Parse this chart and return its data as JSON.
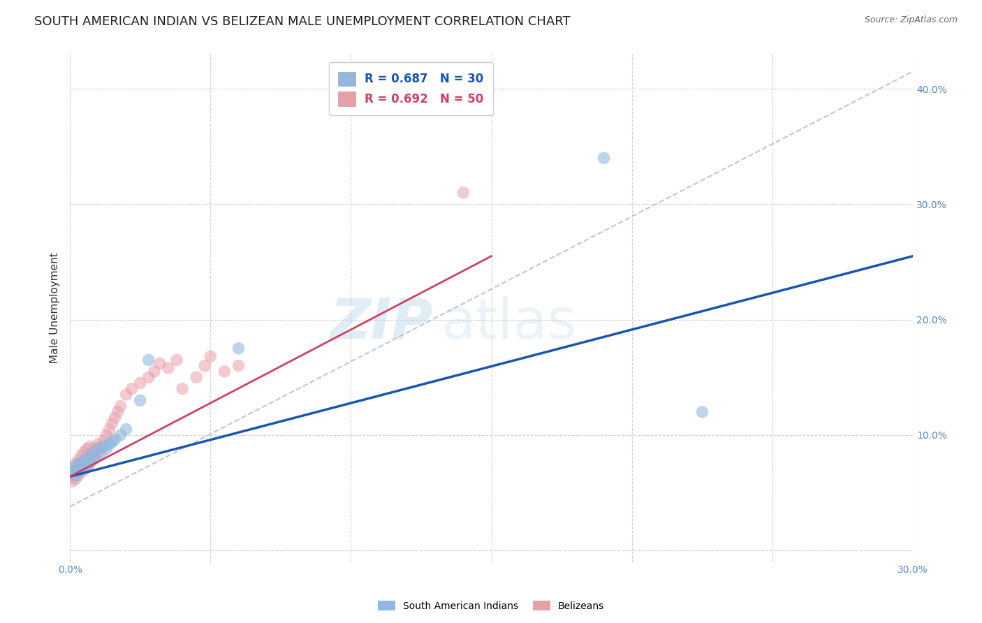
{
  "title": "SOUTH AMERICAN INDIAN VS BELIZEAN MALE UNEMPLOYMENT CORRELATION CHART",
  "source": "Source: ZipAtlas.com",
  "ylabel": "Male Unemployment",
  "xlim": [
    0.0,
    0.3
  ],
  "ylim": [
    -0.01,
    0.43
  ],
  "xticks": [
    0.0,
    0.05,
    0.1,
    0.15,
    0.2,
    0.25,
    0.3
  ],
  "yticks": [
    0.0,
    0.1,
    0.2,
    0.3,
    0.4
  ],
  "blue_color": "#92b8e0",
  "pink_color": "#e8a0a8",
  "blue_line_color": "#1a56b0",
  "pink_line_color": "#d04060",
  "dashed_line_color": "#b0b8c8",
  "watermark_zip": "ZIP",
  "watermark_atlas": "atlas",
  "background_color": "#ffffff",
  "grid_color": "#cccccc",
  "blue_scatter_x": [
    0.001,
    0.001,
    0.002,
    0.002,
    0.003,
    0.003,
    0.004,
    0.004,
    0.005,
    0.005,
    0.006,
    0.006,
    0.007,
    0.008,
    0.008,
    0.009,
    0.01,
    0.011,
    0.012,
    0.013,
    0.014,
    0.015,
    0.016,
    0.018,
    0.02,
    0.025,
    0.028,
    0.06,
    0.19,
    0.225
  ],
  "blue_scatter_y": [
    0.068,
    0.072,
    0.065,
    0.07,
    0.068,
    0.075,
    0.07,
    0.076,
    0.072,
    0.078,
    0.074,
    0.08,
    0.076,
    0.082,
    0.085,
    0.08,
    0.088,
    0.084,
    0.09,
    0.088,
    0.092,
    0.094,
    0.096,
    0.1,
    0.105,
    0.13,
    0.165,
    0.175,
    0.34,
    0.12
  ],
  "pink_scatter_x": [
    0.001,
    0.001,
    0.001,
    0.002,
    0.002,
    0.002,
    0.003,
    0.003,
    0.003,
    0.004,
    0.004,
    0.004,
    0.005,
    0.005,
    0.005,
    0.006,
    0.006,
    0.006,
    0.007,
    0.007,
    0.007,
    0.008,
    0.008,
    0.009,
    0.009,
    0.01,
    0.01,
    0.011,
    0.012,
    0.013,
    0.014,
    0.015,
    0.016,
    0.017,
    0.018,
    0.02,
    0.022,
    0.025,
    0.028,
    0.03,
    0.032,
    0.035,
    0.038,
    0.04,
    0.045,
    0.048,
    0.05,
    0.055,
    0.06,
    0.14
  ],
  "pink_scatter_y": [
    0.06,
    0.065,
    0.068,
    0.062,
    0.07,
    0.075,
    0.065,
    0.072,
    0.078,
    0.068,
    0.075,
    0.082,
    0.07,
    0.078,
    0.085,
    0.072,
    0.08,
    0.088,
    0.075,
    0.082,
    0.09,
    0.078,
    0.085,
    0.082,
    0.088,
    0.085,
    0.092,
    0.09,
    0.095,
    0.1,
    0.105,
    0.11,
    0.115,
    0.12,
    0.125,
    0.135,
    0.14,
    0.145,
    0.15,
    0.155,
    0.162,
    0.158,
    0.165,
    0.14,
    0.15,
    0.16,
    0.168,
    0.155,
    0.16,
    0.31
  ],
  "blue_line_x0": 0.0,
  "blue_line_y0": 0.064,
  "blue_line_x1": 0.3,
  "blue_line_y1": 0.255,
  "pink_line_x0": 0.0,
  "pink_line_y0": 0.064,
  "pink_line_x1": 0.15,
  "pink_line_y1": 0.255,
  "dash_line_x0": 0.0,
  "dash_line_y0": 0.038,
  "dash_line_x1": 0.3,
  "dash_line_y1": 0.415,
  "title_fontsize": 13,
  "axis_label_fontsize": 11,
  "tick_fontsize": 10,
  "legend_fontsize": 12
}
